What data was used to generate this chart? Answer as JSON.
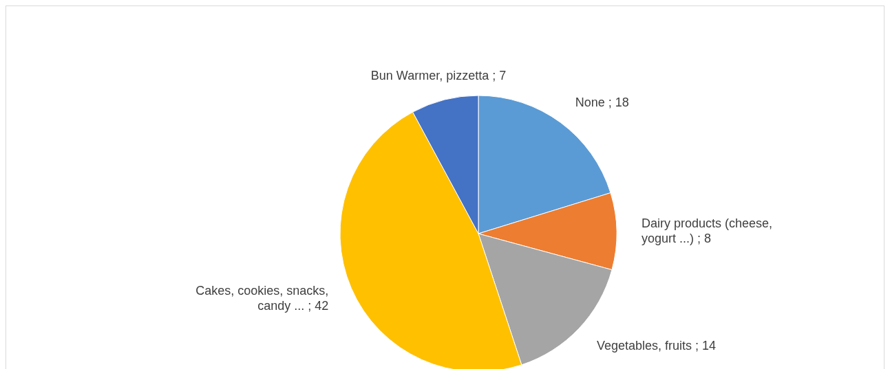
{
  "chart_data": {
    "type": "pie",
    "categories": [
      "None",
      "Dairy products (cheese, yogurt ...)",
      "Vegetables, fruits",
      "Cakes, cookies, snacks, candy ...",
      "Bun Warmer, pizzetta"
    ],
    "values": [
      18,
      8,
      14,
      42,
      7
    ],
    "colors": [
      "#5b9bd5",
      "#ed7d31",
      "#a5a5a5",
      "#ffc000",
      "#4472c4"
    ],
    "value_labels": [
      "; 18",
      "; 8",
      "; 14",
      "; 42",
      "; 7"
    ]
  }
}
